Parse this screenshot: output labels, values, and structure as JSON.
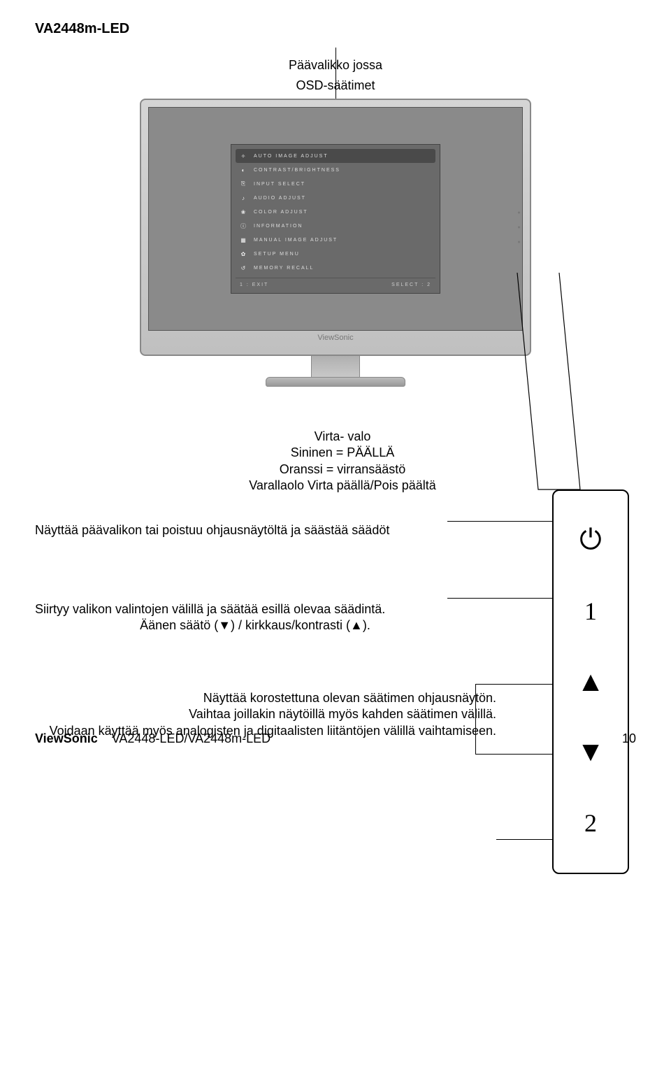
{
  "header": {
    "model": "VA2448m-LED"
  },
  "caption": {
    "line1": "Päävalikko jossa",
    "line2": "OSD-säätimet"
  },
  "osd": {
    "items": [
      {
        "icon": "✧",
        "label": "AUTO IMAGE ADJUST",
        "highlight": true
      },
      {
        "icon": "◐",
        "label": "CONTRAST/BRIGHTNESS",
        "highlight": false
      },
      {
        "icon": "⎘",
        "label": "INPUT SELECT",
        "highlight": false
      },
      {
        "icon": "♪",
        "label": "AUDIO ADJUST",
        "highlight": false
      },
      {
        "icon": "❀",
        "label": "COLOR ADJUST",
        "highlight": false
      },
      {
        "icon": "ⓘ",
        "label": "INFORMATION",
        "highlight": false
      },
      {
        "icon": "▦",
        "label": "MANUAL IMAGE ADJUST",
        "highlight": false
      },
      {
        "icon": "✿",
        "label": "SETUP MENU",
        "highlight": false
      },
      {
        "icon": "↺",
        "label": "MEMORY RECALL",
        "highlight": false
      }
    ],
    "footer_left": "1 : EXIT",
    "footer_right": "SELECT : 2"
  },
  "monitor": {
    "brand": "ViewSonic"
  },
  "buttons": {
    "power": "⏻",
    "one": "1",
    "up": "▲",
    "down": "▼",
    "two": "2"
  },
  "blocks": {
    "b1_l1": "Virta- valo",
    "b1_l2": "Sininen = PÄÄLLÄ",
    "b1_l3": "Oranssi = virransäästö",
    "b1_l4": "Varallaolo Virta päällä/Pois päältä",
    "b2_l1": "Näyttää päävalikon tai poistuu ohjausnäytöltä ja säästää säädöt",
    "b3_l1": "Siirtyy valikon valintojen välillä ja säätää esillä olevaa säädintä.",
    "b3_l2": "Äänen säätö (▼) / kirkkaus/kontrasti  (▲).",
    "b4_l1": "Näyttää korostettuna olevan säätimen ohjausnäytön.",
    "b4_l2": "Vaihtaa joillakin näytöillä myös kahden säätimen välillä.",
    "b4_l3": "Voidaan käyttää myös analogisten ja digitaalisten liitäntöjen välillä vaihtamiseen."
  },
  "footer": {
    "brand": "ViewSonic",
    "model": "VA2448-LED/VA2448m-LED",
    "page": "10"
  },
  "colors": {
    "text": "#000000",
    "bg": "#ffffff",
    "monitor_bezel": "#c9c9c9",
    "screen": "#8a8a8a",
    "osd_bg": "#6a6a6a",
    "osd_highlight": "#4a4a4a"
  }
}
